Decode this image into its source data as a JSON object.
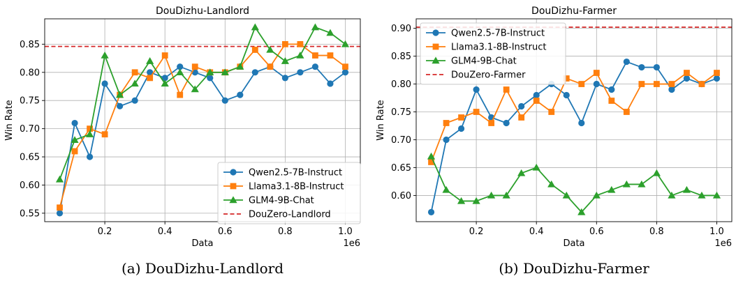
{
  "chart_data": [
    {
      "type": "line",
      "title": "DouDizhu-Landlord",
      "caption": "(a) DouDizhu-Landlord",
      "xlabel": "Data",
      "ylabel": "Win Rate",
      "x_offset_text": "1e6",
      "xlim": [
        0.0,
        1.05
      ],
      "ylim": [
        0.535,
        0.895
      ],
      "xticks": [
        0.2,
        0.4,
        0.6,
        0.8,
        1.0
      ],
      "xtick_labels": [
        "0.2",
        "0.4",
        "0.6",
        "0.8",
        "1.0"
      ],
      "yticks": [
        0.55,
        0.6,
        0.65,
        0.7,
        0.75,
        0.8,
        0.85
      ],
      "ytick_labels": [
        "0.55",
        "0.60",
        "0.65",
        "0.70",
        "0.75",
        "0.80",
        "0.85"
      ],
      "grid": true,
      "legend_position": "lower-right",
      "x": [
        0.05,
        0.1,
        0.15,
        0.2,
        0.25,
        0.3,
        0.35,
        0.4,
        0.45,
        0.5,
        0.55,
        0.6,
        0.65,
        0.7,
        0.75,
        0.8,
        0.85,
        0.9,
        0.95,
        1.0
      ],
      "series": [
        {
          "name": "Qwen2.5-7B-Instruct",
          "color": "#1f77b4",
          "marker": "circle",
          "values": [
            0.55,
            0.71,
            0.65,
            0.78,
            0.74,
            0.75,
            0.8,
            0.79,
            0.81,
            0.8,
            0.79,
            0.75,
            0.76,
            0.8,
            0.81,
            0.79,
            0.8,
            0.81,
            0.78,
            0.8
          ]
        },
        {
          "name": "Llama3.1-8B-Instruct",
          "color": "#ff7f0e",
          "marker": "square",
          "values": [
            0.56,
            0.66,
            0.7,
            0.69,
            0.76,
            0.8,
            0.79,
            0.83,
            0.76,
            0.81,
            0.8,
            0.8,
            0.81,
            0.84,
            0.81,
            0.85,
            0.85,
            0.83,
            0.83,
            0.81
          ]
        },
        {
          "name": "GLM4-9B-Chat",
          "color": "#2ca02c",
          "marker": "triangle",
          "values": [
            0.61,
            0.68,
            0.69,
            0.83,
            0.76,
            0.78,
            0.82,
            0.78,
            0.8,
            0.77,
            0.8,
            0.8,
            0.81,
            0.88,
            0.84,
            0.82,
            0.83,
            0.88,
            0.87,
            0.85
          ]
        }
      ],
      "reference_lines": [
        {
          "name": "DouZero-Landlord",
          "color": "#d62728",
          "y": 0.846,
          "style": "dashed"
        }
      ]
    },
    {
      "type": "line",
      "title": "DouDizhu-Farmer",
      "caption": "(b) DouDizhu-Farmer",
      "xlabel": "Data",
      "ylabel": "Win Rate",
      "x_offset_text": "1e6",
      "xlim": [
        0.0,
        1.05
      ],
      "ylim": [
        0.553,
        0.917
      ],
      "xticks": [
        0.2,
        0.4,
        0.6,
        0.8,
        1.0
      ],
      "xtick_labels": [
        "0.2",
        "0.4",
        "0.6",
        "0.8",
        "1.0"
      ],
      "yticks": [
        0.6,
        0.65,
        0.7,
        0.75,
        0.8,
        0.85,
        0.9
      ],
      "ytick_labels": [
        "0.60",
        "0.65",
        "0.70",
        "0.75",
        "0.80",
        "0.85",
        "0.90"
      ],
      "grid": true,
      "legend_position": "upper-left",
      "x": [
        0.05,
        0.1,
        0.15,
        0.2,
        0.25,
        0.3,
        0.35,
        0.4,
        0.45,
        0.5,
        0.55,
        0.6,
        0.65,
        0.7,
        0.75,
        0.8,
        0.85,
        0.9,
        0.95,
        1.0
      ],
      "series": [
        {
          "name": "Qwen2.5-7B-Instruct",
          "color": "#1f77b4",
          "marker": "circle",
          "values": [
            0.57,
            0.7,
            0.72,
            0.79,
            0.74,
            0.73,
            0.76,
            0.78,
            0.8,
            0.78,
            0.73,
            0.8,
            0.79,
            0.84,
            0.83,
            0.83,
            0.79,
            0.81,
            0.8,
            0.81
          ]
        },
        {
          "name": "Llama3.1-8B-Instruct",
          "color": "#ff7f0e",
          "marker": "square",
          "values": [
            0.66,
            0.73,
            0.74,
            0.75,
            0.73,
            0.79,
            0.74,
            0.77,
            0.75,
            0.81,
            0.8,
            0.82,
            0.77,
            0.75,
            0.8,
            0.8,
            0.8,
            0.82,
            0.8,
            0.82
          ]
        },
        {
          "name": "GLM4-9B-Chat",
          "color": "#2ca02c",
          "marker": "triangle",
          "values": [
            0.67,
            0.61,
            0.59,
            0.59,
            0.6,
            0.6,
            0.64,
            0.65,
            0.62,
            0.6,
            0.57,
            0.6,
            0.61,
            0.62,
            0.62,
            0.64,
            0.6,
            0.61,
            0.6,
            0.6
          ]
        }
      ],
      "reference_lines": [
        {
          "name": "DouZero-Farmer",
          "color": "#d62728",
          "y": 0.902,
          "style": "dashed"
        }
      ]
    }
  ]
}
